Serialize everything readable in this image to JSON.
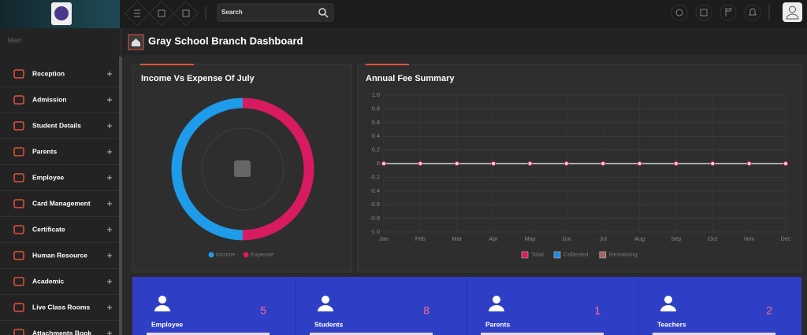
{
  "header": {
    "search_placeholder": "Search"
  },
  "sidebar": {
    "section": "Main",
    "items": [
      "Reception",
      "Admission",
      "Student Details",
      "Parents",
      "Employee",
      "Card Management",
      "Certificate",
      "Human Resource",
      "Academic",
      "Live Class Rooms",
      "Attachments Book"
    ]
  },
  "page_title": "Gray School Branch Dashboard",
  "chart_data": [
    {
      "type": "pie",
      "title": "Income Vs Expense Of July",
      "categories": [
        "Income",
        "Expense"
      ],
      "values": [
        50,
        50
      ],
      "colors": [
        "#1e9be9",
        "#d81b60"
      ],
      "donut": true
    },
    {
      "type": "line",
      "title": "Annual Fee Summary",
      "categories": [
        "Jan",
        "Feb",
        "Mar",
        "Apr",
        "May",
        "Jun",
        "Jul",
        "Aug",
        "Sep",
        "Oct",
        "Nov",
        "Dec"
      ],
      "series": [
        {
          "name": "Total",
          "color": "#d81b60",
          "values": [
            0,
            0,
            0,
            0,
            0,
            0,
            0,
            0,
            0,
            0,
            0,
            0
          ]
        },
        {
          "name": "Collected",
          "color": "#1e88e5",
          "values": [
            0,
            0,
            0,
            0,
            0,
            0,
            0,
            0,
            0,
            0,
            0,
            0
          ]
        },
        {
          "name": "Remaining",
          "color": "#a1665e",
          "values": [
            0,
            0,
            0,
            0,
            0,
            0,
            0,
            0,
            0,
            0,
            0,
            0
          ]
        }
      ],
      "ylim": [
        -1,
        1
      ],
      "yticks": [
        {
          "value": 1,
          "label": "1.0"
        },
        0.8,
        0.6,
        0.4,
        0.2,
        0,
        -0.2,
        -0.4,
        -0.6,
        -0.8,
        {
          "value": -1,
          "label": "-1.0"
        }
      ],
      "grid": true
    }
  ],
  "stats": [
    {
      "label": "Employee",
      "value": 5
    },
    {
      "label": "Students",
      "value": 8
    },
    {
      "label": "Parents",
      "value": 1
    },
    {
      "label": "Teachers",
      "value": 2
    }
  ]
}
